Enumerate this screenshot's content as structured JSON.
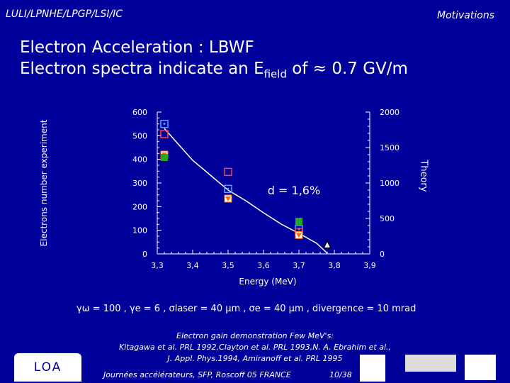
{
  "header": {
    "org": "LULI/LPNHE/LPGP/LSI/IC",
    "section": "Motivations"
  },
  "title": {
    "line1": "Electron Acceleration : LBWF",
    "line2_prefix": "Electron spectra indicate an E",
    "line2_sub": "field",
    "line2_suffix": " of ≈ 0.7 GV/m"
  },
  "chart_data": {
    "type": "scatter",
    "xlabel": "Energy (MeV)",
    "ylabel": "Electrons number experiment",
    "ylabel_right": "Theory",
    "x_ticks": [
      "3,3",
      "3,4",
      "3,5",
      "3,6",
      "3,7",
      "3,8",
      "3,9"
    ],
    "y_ticks_left": [
      "0",
      "100",
      "200",
      "300",
      "400",
      "500",
      "600"
    ],
    "y_ticks_right": [
      "0",
      "500",
      "1000",
      "1500",
      "2000"
    ],
    "xlim": [
      3.3,
      3.9
    ],
    "ylim_left": [
      0,
      600
    ],
    "ylim_right": [
      0,
      2000
    ],
    "annotation": "d = 1,6%",
    "theory_curve": {
      "x": [
        3.32,
        3.35,
        3.4,
        3.45,
        3.5,
        3.55,
        3.6,
        3.65,
        3.7,
        3.75,
        3.78
      ],
      "y": [
        1770,
        1600,
        1320,
        1110,
        900,
        750,
        580,
        420,
        290,
        150,
        10
      ]
    },
    "series": [
      {
        "marker": "dot-square",
        "color": "#4da6ff",
        "points": [
          [
            3.32,
            550
          ],
          [
            3.5,
            275
          ],
          [
            3.7,
            105
          ]
        ]
      },
      {
        "marker": "hollow-square",
        "color": "#ff4040",
        "points": [
          [
            3.32,
            507
          ],
          [
            3.5,
            347
          ],
          [
            3.7,
            93
          ]
        ]
      },
      {
        "marker": "triangle-square",
        "color": "#ff6a00",
        "points": [
          [
            3.32,
            420
          ],
          [
            3.5,
            234
          ],
          [
            3.7,
            80
          ]
        ]
      },
      {
        "marker": "filled-square",
        "color": "#22aa22",
        "points": [
          [
            3.32,
            408
          ],
          [
            3.7,
            138
          ]
        ]
      },
      {
        "marker": "triangle",
        "color": "#000000",
        "points": [
          [
            3.78,
            40
          ]
        ]
      }
    ]
  },
  "params": "γω = 100 , γe = 6 , σlaser = 40 μm , σe = 40 μm , divergence = 10 mrad",
  "refs": {
    "line1": "Electron gain demonstration Few MeV's:",
    "line2": "Kitagawa et al. PRL 1992,Clayton et al. PRL 1993,N. A. Ebrahim et al.,",
    "line3": "J. Appl. Phys.1994, Amiranoff et al. PRL 1995"
  },
  "footer": {
    "text": "Journées accélérateurs, SFP, Roscoff 05 FRANCE",
    "page": "10/38"
  },
  "logos": {
    "loa": "LOA"
  }
}
